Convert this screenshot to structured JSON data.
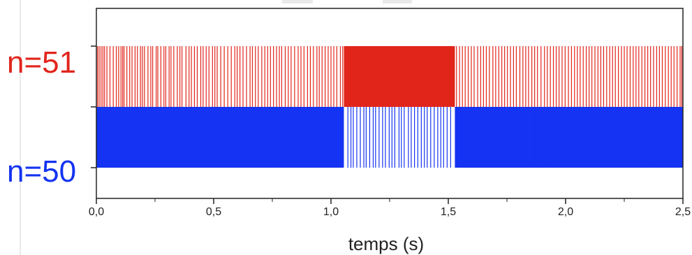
{
  "chart_data": {
    "type": "bar",
    "xlabel": "temps (s)",
    "ylabel": "",
    "xlim": [
      0,
      2.5
    ],
    "xticks": [
      {
        "value": 0.0,
        "label": "0,0"
      },
      {
        "value": 0.5,
        "label": "0,5"
      },
      {
        "value": 1.0,
        "label": "1,0"
      },
      {
        "value": 1.5,
        "label": "1,5"
      },
      {
        "value": 2.0,
        "label": "2,0"
      },
      {
        "value": 2.5,
        "label": "2,5"
      }
    ],
    "states": [
      {
        "label": "n=51",
        "color": "#e1251b"
      },
      {
        "label": "n=50",
        "color": "#1433f2"
      }
    ],
    "series": [
      {
        "name": "n=51",
        "color": "#e1251b",
        "solid_intervals": [
          [
            1.055,
            1.528
          ]
        ],
        "events": [
          0.005,
          0.012,
          0.02,
          0.028,
          0.035,
          0.045,
          0.058,
          0.072,
          0.085,
          0.095,
          0.105,
          0.112,
          0.118,
          0.13,
          0.142,
          0.152,
          0.165,
          0.175,
          0.188,
          0.196,
          0.205,
          0.22,
          0.232,
          0.24,
          0.255,
          0.262,
          0.275,
          0.288,
          0.296,
          0.31,
          0.318,
          0.33,
          0.345,
          0.356,
          0.365,
          0.382,
          0.395,
          0.405,
          0.418,
          0.43,
          0.445,
          0.455,
          0.468,
          0.48,
          0.495,
          0.505,
          0.515,
          0.53,
          0.545,
          0.56,
          0.575,
          0.59,
          0.6,
          0.612,
          0.625,
          0.64,
          0.655,
          0.665,
          0.678,
          0.69,
          0.705,
          0.718,
          0.73,
          0.742,
          0.755,
          0.768,
          0.78,
          0.79,
          0.805,
          0.818,
          0.83,
          0.845,
          0.86,
          0.872,
          0.885,
          0.9,
          0.912,
          0.925,
          0.94,
          0.95,
          0.962,
          0.975,
          0.988,
          1.0,
          1.012,
          1.025,
          1.04,
          1.05,
          1.535,
          1.548,
          1.56,
          1.572,
          1.585,
          1.598,
          1.61,
          1.625,
          1.638,
          1.65,
          1.662,
          1.675,
          1.69,
          1.702,
          1.715,
          1.728,
          1.74,
          1.752,
          1.765,
          1.778,
          1.79,
          1.805,
          1.818,
          1.83,
          1.842,
          1.856,
          1.868,
          1.88,
          1.895,
          1.91,
          1.922,
          1.935,
          1.948,
          1.96,
          1.972,
          1.985,
          1.998,
          2.012,
          2.025,
          2.038,
          2.05,
          2.062,
          2.075,
          2.088,
          2.1,
          2.112,
          2.125,
          2.138,
          2.15,
          2.162,
          2.175,
          2.188,
          2.2,
          2.212,
          2.225,
          2.238,
          2.25,
          2.262,
          2.275,
          2.288,
          2.3,
          2.312,
          2.325,
          2.338,
          2.35,
          2.362,
          2.375,
          2.388,
          2.4,
          2.412,
          2.425,
          2.438,
          2.45,
          2.462,
          2.475,
          2.488,
          2.495
        ]
      },
      {
        "name": "n=50",
        "color": "#1433f2",
        "solid_intervals": [
          [
            0.0,
            1.055
          ],
          [
            1.528,
            2.5
          ]
        ],
        "events": [
          0.12,
          0.76,
          1.072,
          1.085,
          1.095,
          1.11,
          1.125,
          1.14,
          1.15,
          1.165,
          1.18,
          1.19,
          1.205,
          1.22,
          1.232,
          1.248,
          1.26,
          1.272,
          1.29,
          1.3,
          1.312,
          1.33,
          1.342,
          1.356,
          1.37,
          1.385,
          1.398,
          1.41,
          1.425,
          1.44,
          1.455,
          1.468,
          1.48,
          1.495,
          1.51,
          1.87,
          1.93,
          2.29,
          2.36
        ]
      }
    ]
  }
}
